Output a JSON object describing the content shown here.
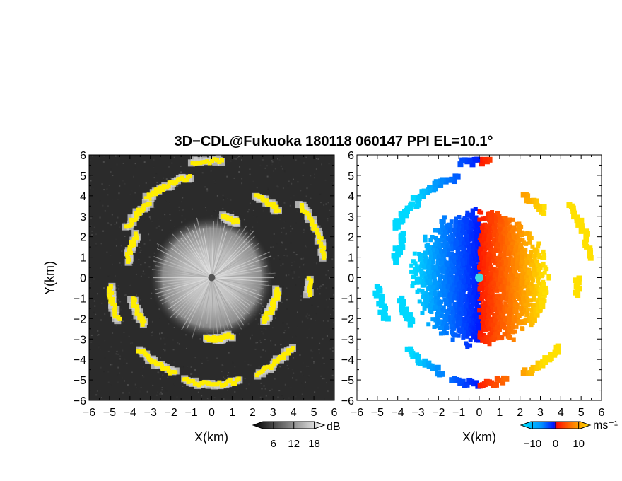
{
  "title": "3D−CDL@Fukuoka 180118 060147 PPI EL=10.1°",
  "chart_data": [
    {
      "type": "heatmap",
      "panel": "reflectivity",
      "xlabel": "X(km)",
      "ylabel": "Y(km)",
      "xlim": [
        -6,
        6
      ],
      "ylim": [
        -6,
        6
      ],
      "x_ticks": [
        "−6",
        "−5",
        "−4",
        "−3",
        "−2",
        "−1",
        "0",
        "1",
        "2",
        "3",
        "4",
        "5",
        "6"
      ],
      "y_ticks": [
        "−6",
        "−5",
        "−4",
        "−3",
        "−2",
        "−1",
        "0",
        "1",
        "2",
        "3",
        "4",
        "5",
        "6"
      ],
      "colorbar": {
        "unit": "dB",
        "tick_labels": [
          "6",
          "12",
          "18"
        ],
        "ticks": [
          6,
          12,
          18
        ],
        "range": [
          0,
          21
        ]
      },
      "background_color": "#2b2b2b",
      "highlight_color": "#ffee00",
      "radar_site": [
        0,
        0
      ],
      "inner_echo_radius_km": 3.0,
      "ring_segments": [
        {
          "theta": [
            10,
            40
          ],
          "r": 5.6
        },
        {
          "theta": [
            45,
            62
          ],
          "r": 4.6
        },
        {
          "theta": [
            65,
            80
          ],
          "r": 3.0
        },
        {
          "theta": [
            85,
            100
          ],
          "r": 5.7
        },
        {
          "theta": [
            102,
            130
          ],
          "r": 5.0
        },
        {
          "theta": [
            130,
            150
          ],
          "r": 4.8
        },
        {
          "theta": [
            150,
            170
          ],
          "r": 4.2
        },
        {
          "theta": [
            185,
            205
          ],
          "r": 5.0
        },
        {
          "theta": [
            195,
            215
          ],
          "r": 4.0
        },
        {
          "theta": [
            225,
            250
          ],
          "r": 5.0
        },
        {
          "theta": [
            255,
            285
          ],
          "r": 5.2
        },
        {
          "theta": [
            265,
            290
          ],
          "r": 3.0
        },
        {
          "theta": [
            295,
            320
          ],
          "r": 5.2
        },
        {
          "theta": [
            320,
            350
          ],
          "r": 3.3
        },
        {
          "theta": [
            350,
            360
          ],
          "r": 4.8
        }
      ]
    },
    {
      "type": "heatmap",
      "panel": "doppler_velocity",
      "xlabel": "X(km)",
      "xlim": [
        -6,
        6
      ],
      "ylim": [
        -6,
        6
      ],
      "x_ticks": [
        "−6",
        "−5",
        "−4",
        "−3",
        "−2",
        "−1",
        "0",
        "1",
        "2",
        "3",
        "4",
        "5",
        "6"
      ],
      "colorbar": {
        "unit": "ms⁻¹",
        "tick_labels": [
          "−10",
          "0",
          "10"
        ],
        "ticks": [
          -10,
          0,
          10
        ],
        "range": [
          -15,
          15
        ]
      },
      "colors": {
        "negative_far": "#00d8ff",
        "negative_near": "#0018ff",
        "zero": "#00c8c8",
        "positive_near": "#ff1800",
        "positive_far": "#ffe000"
      },
      "radar_site": [
        0,
        0
      ],
      "marker_color": "#40d8e0"
    }
  ]
}
